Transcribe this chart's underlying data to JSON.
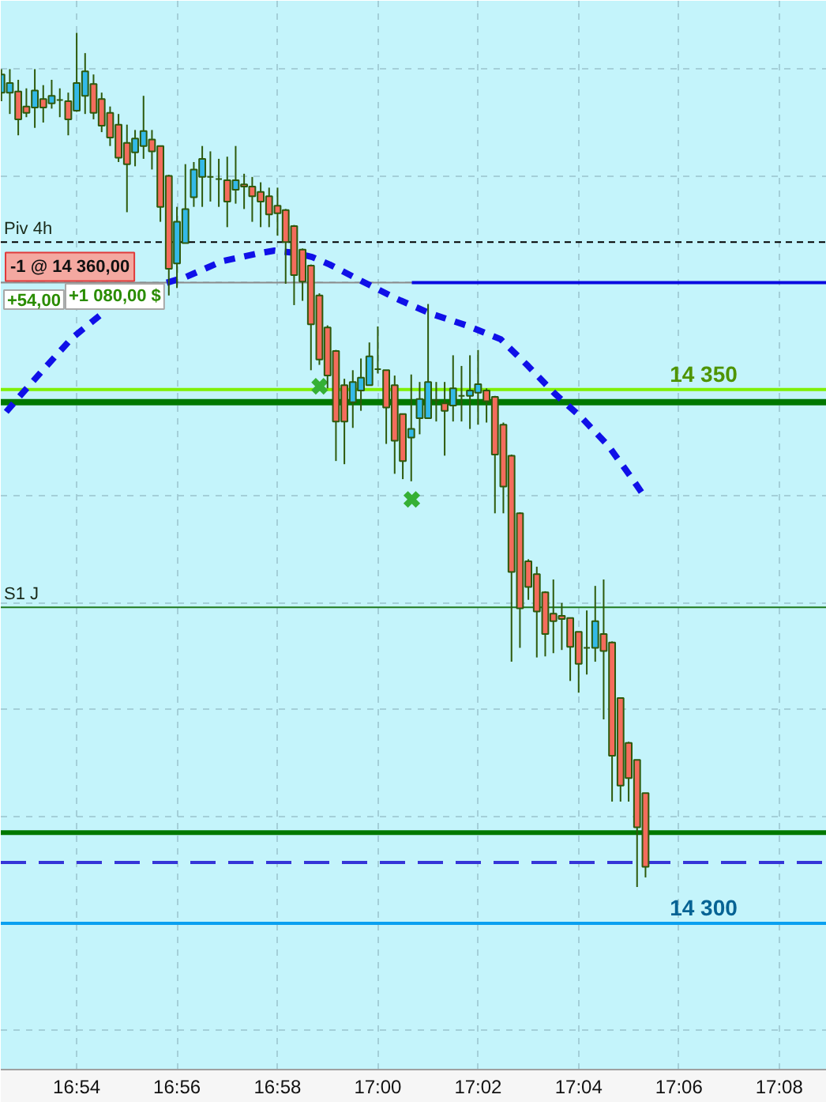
{
  "chart_data": {
    "type": "candlestick",
    "x": [
      16.875,
      16.8778,
      16.8806,
      16.8833,
      16.8861,
      16.8889,
      16.8917,
      16.8944,
      16.8972,
      16.9,
      16.9028,
      16.9056,
      16.9083,
      16.9111,
      16.9139,
      16.9167,
      16.9194,
      16.9222,
      16.925,
      16.9278,
      16.9306,
      16.9333,
      16.9361,
      16.9389,
      16.9417,
      16.9444,
      16.9472,
      16.95,
      16.9528,
      16.9556,
      16.9583,
      16.9611,
      16.9639,
      16.9667,
      16.9694,
      16.9722,
      16.975,
      16.9778,
      16.9806,
      16.9833,
      16.9861,
      16.9889,
      16.9917,
      16.9944,
      16.9972,
      17.0,
      17.0028,
      17.0056,
      17.0083,
      17.0111,
      17.0139,
      17.0167,
      17.0194,
      17.0222,
      17.025,
      17.0278,
      17.0306,
      17.0333,
      17.0361,
      17.0389,
      17.0417,
      17.0444,
      17.0472,
      17.05,
      17.0528,
      17.0556,
      17.0583,
      17.0611,
      17.0639,
      17.0667,
      17.0694,
      17.0722,
      17.075,
      17.0778,
      17.0806,
      17.0833,
      17.0861,
      17.0889
    ],
    "ohlc": [
      [
        14377.8,
        14380.0,
        14377.0,
        14379.5
      ],
      [
        14377.8,
        14380.0,
        14375.8,
        14378.7
      ],
      [
        14377.9,
        14379.0,
        14373.8,
        14375.3
      ],
      [
        14376.5,
        14378.2,
        14375.5,
        14375.9
      ],
      [
        14376.4,
        14380.0,
        14374.5,
        14378.0
      ],
      [
        14377.2,
        14378.5,
        14375.0,
        14376.4
      ],
      [
        14376.8,
        14379.0,
        14376.3,
        14377.5
      ],
      [
        14377.1,
        14378.2,
        14375.5,
        14377.1
      ],
      [
        14377.0,
        14377.8,
        14373.8,
        14375.3
      ],
      [
        14376.1,
        14383.4,
        14376.0,
        14378.7
      ],
      [
        14377.5,
        14381.5,
        14375.8,
        14379.8
      ],
      [
        14378.6,
        14379.5,
        14375.3,
        14375.9
      ],
      [
        14377.2,
        14377.8,
        14374.1,
        14374.7
      ],
      [
        14375.9,
        14376.5,
        14372.8,
        14373.6
      ],
      [
        14374.8,
        14375.8,
        14371.3,
        14371.7
      ],
      [
        14373.1,
        14374.8,
        14366.6,
        14371.1
      ],
      [
        14372.2,
        14374.3,
        14370.9,
        14373.5
      ],
      [
        14372.8,
        14377.5,
        14371.6,
        14374.2
      ],
      [
        14373.4,
        14374.3,
        14370.6,
        14372.3
      ],
      [
        14372.8,
        14372.8,
        14365.7,
        14367.1
      ],
      [
        14370.0,
        14370.1,
        14358.8,
        14361.3
      ],
      [
        14361.8,
        14367.1,
        14359.5,
        14365.7
      ],
      [
        14363.7,
        14371.1,
        14363.7,
        14366.9
      ],
      [
        14368.0,
        14371.3,
        14367.1,
        14370.6
      ],
      [
        14369.9,
        14372.8,
        14367.1,
        14371.6
      ],
      [
        14369.9,
        14372.3,
        14367.6,
        14369.9
      ],
      [
        14369.7,
        14371.6,
        14367.1,
        14369.7
      ],
      [
        14369.6,
        14371.8,
        14365.2,
        14367.6
      ],
      [
        14368.7,
        14372.8,
        14367.4,
        14369.6
      ],
      [
        14369.2,
        14370.2,
        14366.9,
        14369.0
      ],
      [
        14369.0,
        14369.9,
        14365.7,
        14368.1
      ],
      [
        14368.5,
        14369.4,
        14365.2,
        14367.6
      ],
      [
        14368.1,
        14368.9,
        14365.2,
        14366.4
      ],
      [
        14367.2,
        14368.9,
        14364.4,
        14366.5
      ],
      [
        14366.8,
        14366.9,
        14359.9,
        14363.8
      ],
      [
        14365.3,
        14365.4,
        14357.9,
        14360.7
      ],
      [
        14363.1,
        14363.2,
        14358.3,
        14360.1
      ],
      [
        14361.6,
        14361.7,
        14351.8,
        14356.1
      ],
      [
        14358.8,
        14359.0,
        14352.3,
        14352.8
      ],
      [
        14355.8,
        14356.0,
        14350.1,
        14351.3
      ],
      [
        14353.6,
        14353.7,
        14343.3,
        14347.0
      ],
      [
        14350.4,
        14351.0,
        14343.0,
        14347.0
      ],
      [
        14348.8,
        14351.8,
        14346.4,
        14350.7
      ],
      [
        14349.9,
        14352.9,
        14348.0,
        14351.1
      ],
      [
        14350.4,
        14354.4,
        14350.4,
        14353.1
      ],
      [
        14351.9,
        14355.9,
        14351.5,
        14351.9
      ],
      [
        14351.8,
        14351.8,
        14344.9,
        14348.3
      ],
      [
        14350.4,
        14351.3,
        14342.1,
        14345.2
      ],
      [
        14347.7,
        14347.7,
        14341.6,
        14343.3
      ],
      [
        14345.5,
        14351.4,
        14341.4,
        14346.3
      ],
      [
        14347.3,
        14350.7,
        14345.8,
        14349.1
      ],
      [
        14347.3,
        14358.0,
        14347.3,
        14350.7
      ],
      [
        14349.0,
        14350.7,
        14347.0,
        14349.0
      ],
      [
        14348.7,
        14350.7,
        14343.8,
        14348.0
      ],
      [
        14348.5,
        14353.2,
        14347.0,
        14350.1
      ],
      [
        14349.4,
        14352.2,
        14347.0,
        14349.4
      ],
      [
        14349.4,
        14353.2,
        14346.3,
        14349.9
      ],
      [
        14349.7,
        14353.7,
        14346.7,
        14350.5
      ],
      [
        14349.9,
        14350.1,
        14346.9,
        14348.9
      ],
      [
        14349.3,
        14349.4,
        14338.4,
        14343.9
      ],
      [
        14346.7,
        14346.9,
        14338.4,
        14340.9
      ],
      [
        14343.8,
        14343.9,
        14324.5,
        14332.9
      ],
      [
        14338.4,
        14338.5,
        14325.8,
        14329.5
      ],
      [
        14333.9,
        14334.1,
        14330.3,
        14331.5
      ],
      [
        14332.7,
        14333.4,
        14324.9,
        14329.2
      ],
      [
        14331.0,
        14331.1,
        14325.0,
        14327.1
      ],
      [
        14329.0,
        14332.2,
        14325.3,
        14328.3
      ],
      [
        14328.8,
        14330.0,
        14325.6,
        14328.5
      ],
      [
        14328.6,
        14328.6,
        14322.7,
        14325.9
      ],
      [
        14327.3,
        14327.3,
        14321.6,
        14324.3
      ],
      [
        14325.8,
        14329.3,
        14323.3,
        14325.8
      ],
      [
        14325.8,
        14331.6,
        14324.5,
        14328.3
      ],
      [
        14327.1,
        14332.2,
        14319.1,
        14325.5
      ],
      [
        14326.3,
        14326.4,
        14311.4,
        14315.7
      ],
      [
        14321.1,
        14321.1,
        14311.4,
        14312.9
      ],
      [
        14316.9,
        14317.0,
        14311.4,
        14313.6
      ],
      [
        14315.3,
        14315.3,
        14303.4,
        14309.0
      ],
      [
        14312.2,
        14312.2,
        14304.3,
        14305.3
      ]
    ],
    "colors": [
      "#33b9e8",
      "#33b9e8",
      "#f46c5c",
      "#f46c5c",
      "#33b9e8",
      "#f46c5c",
      "#33b9e8",
      "#2d5a0c",
      "#f46c5c",
      "#33b9e8",
      "#33b9e8",
      "#f46c5c",
      "#f46c5c",
      "#f46c5c",
      "#f46c5c",
      "#f46c5c",
      "#33b9e8",
      "#33b9e8",
      "#f46c5c",
      "#f46c5c",
      "#f46c5c",
      "#33b9e8",
      "#33b9e8",
      "#33b9e8",
      "#33b9e8",
      "#2d5a0c",
      "#2d5a0c",
      "#f46c5c",
      "#33b9e8",
      "#f46c5c",
      "#f46c5c",
      "#f46c5c",
      "#f46c5c",
      "#f46c5c",
      "#f46c5c",
      "#f46c5c",
      "#f46c5c",
      "#f46c5c",
      "#f46c5c",
      "#f46c5c",
      "#f46c5c",
      "#f46c5c",
      "#33b9e8",
      "#33b9e8",
      "#33b9e8",
      "#2d5a0c",
      "#f46c5c",
      "#f46c5c",
      "#f46c5c",
      "#33b9e8",
      "#33b9e8",
      "#33b9e8",
      "#2d5a0c",
      "#f46c5c",
      "#33b9e8",
      "#2d5a0c",
      "#33b9e8",
      "#33b9e8",
      "#f46c5c",
      "#f46c5c",
      "#f46c5c",
      "#f46c5c",
      "#f46c5c",
      "#f46c5c",
      "#f46c5c",
      "#f46c5c",
      "#f46c5c",
      "#f46c5c",
      "#f46c5c",
      "#f46c5c",
      "#2d5a0c",
      "#33b9e8",
      "#f46c5c",
      "#f46c5c",
      "#f46c5c",
      "#f46c5c",
      "#f46c5c",
      "#f46c5c"
    ],
    "series": [
      {
        "type": "line",
        "color": "#1010e8",
        "line_style": "dotted",
        "x": [
          16.8766,
          16.8818,
          16.8897,
          16.8984,
          16.908,
          16.922,
          16.9299,
          16.936,
          16.9482,
          16.9596,
          16.9657,
          16.9722,
          16.9782,
          16.984,
          16.995,
          17.0062,
          17.0176,
          17.0294,
          17.0408,
          17.0499,
          17.0588,
          17.0679,
          17.0766,
          17.0841,
          17.088
        ],
        "values": [
          14347.9,
          14349.6,
          14352.1,
          14354.8,
          14357.0,
          null,
          14360.0,
          14360.5,
          14362.0,
          14362.7,
          14363.0,
          14362.8,
          14362.4,
          14361.7,
          14360.1,
          14358.5,
          14357.1,
          14356.0,
          14354.7,
          14352.2,
          14349.6,
          14347.3,
          14344.7,
          14341.8,
          14340.2
        ]
      },
      {
        "type": "line",
        "color": "#0a0ae0",
        "line_style": "solid",
        "x": [
          17.0113,
          17.1491
        ],
        "values": [
          14360,
          14360
        ]
      },
      {
        "type": "scatter",
        "color": "#35b035",
        "marker": "cross",
        "x": [
          16.9807,
          17.0113
        ],
        "values": [
          14350.3,
          14339.7
        ]
      }
    ],
    "xlim": [
      16.8748,
      17.1491
    ],
    "xticks": [
      {
        "value": 16.9,
        "label": "16:54"
      },
      {
        "value": 16.9333,
        "label": "16:56"
      },
      {
        "value": 16.9667,
        "label": "16:58"
      },
      {
        "value": 17,
        "label": "17:00"
      },
      {
        "value": 17.0333,
        "label": "17:02"
      },
      {
        "value": 17.0667,
        "label": "17:04"
      },
      {
        "value": 17.1,
        "label": "17:06"
      },
      {
        "value": 17.1333,
        "label": "17:08"
      }
    ],
    "ylim": [
      14286.3,
      14386.4
    ],
    "yticks": [
      {
        "value": 14290,
        "label": null
      },
      {
        "value": 14300,
        "label": null
      },
      {
        "value": 14310,
        "label": null
      },
      {
        "value": 14320,
        "label": null
      },
      {
        "value": 14330,
        "label": null
      },
      {
        "value": 14340,
        "label": null
      },
      {
        "value": 14350,
        "label": null
      },
      {
        "value": 14360,
        "label": null
      },
      {
        "value": 14370,
        "label": null
      },
      {
        "value": 14380,
        "label": null
      }
    ],
    "ref_lines": [
      {
        "axis": "y",
        "value": 14363.8,
        "label": "Piv 4h",
        "color": "#000000",
        "line_style": "dashed"
      },
      {
        "axis": "y",
        "value": 14360,
        "label": "-1 @ 14 360,00",
        "color": "#8c8c8c"
      },
      {
        "axis": "y",
        "value": 14350,
        "label": "14 350",
        "color": "#7ff000"
      },
      {
        "axis": "y",
        "value": 14348.8,
        "color": "#007800"
      },
      {
        "axis": "y",
        "value": 14329.6,
        "label": "S1 J",
        "color": "#1f7a1f"
      },
      {
        "axis": "y",
        "value": 14308.5,
        "color": "#007800"
      },
      {
        "axis": "y",
        "value": 14305.7,
        "color": "#3535d8",
        "line_style": "dashed"
      },
      {
        "axis": "y",
        "value": 14300,
        "label": "14 300",
        "color": "#0aa0f0"
      }
    ],
    "annotations": [
      "+54,00",
      "+1 080,00 $"
    ],
    "grid": true,
    "tick_labels": "x"
  }
}
